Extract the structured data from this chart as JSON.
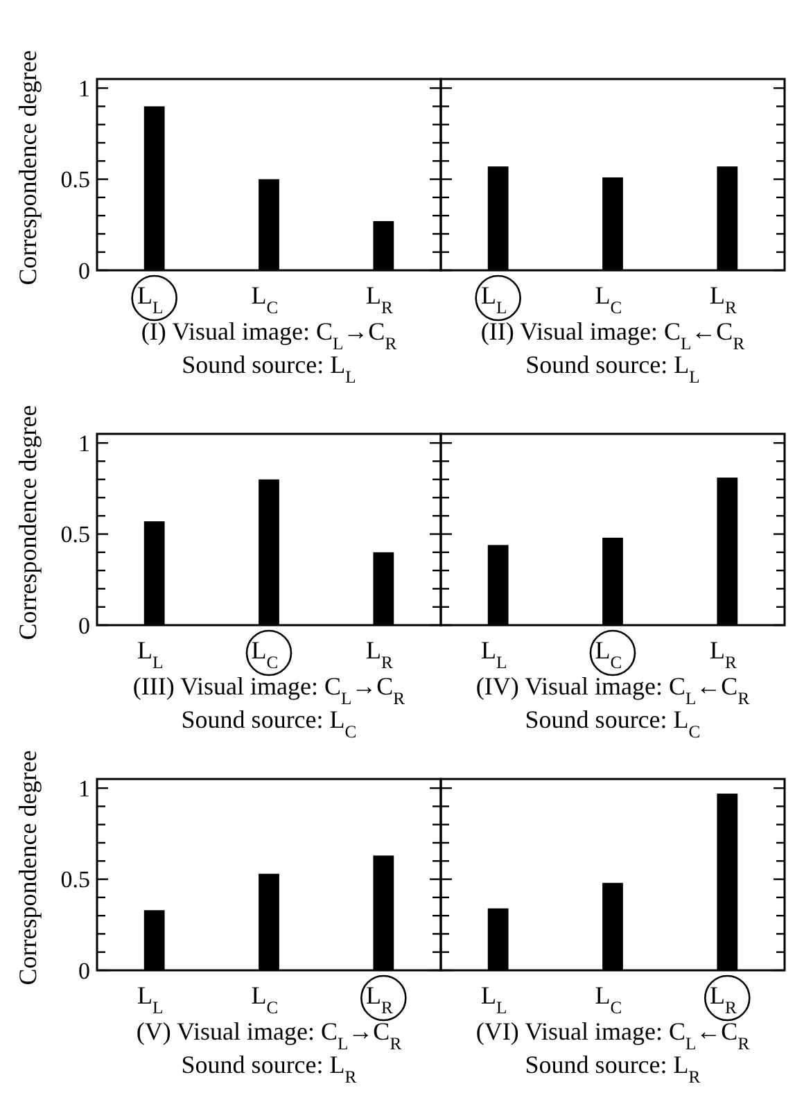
{
  "chart_data": [
    {
      "type": "bar",
      "title": "(I) Visual image: C$_{L}$→C$_{R}$",
      "subtitle": "Sound source: L$_{L}$",
      "ylabel": "Correspondence degree",
      "categories": [
        "L$_{L}$",
        "L$_{C}$",
        "L$_{R}$"
      ],
      "values": [
        0.9,
        0.5,
        0.27
      ],
      "color": "#000000",
      "ylim": [
        0,
        1.05
      ],
      "yticks": [
        0,
        {
          "value": 0.1,
          "label": null
        },
        {
          "value": 0.2,
          "label": null
        },
        {
          "value": 0.3,
          "label": null
        },
        {
          "value": 0.4,
          "label": null
        },
        0.5,
        {
          "value": 0.6,
          "label": null
        },
        {
          "value": 0.7,
          "label": null
        },
        {
          "value": 0.8,
          "label": null
        },
        {
          "value": 0.9,
          "label": null
        },
        1
      ],
      "grid": false
    },
    {
      "type": "bar",
      "title": "(II) Visual image: C$_{L}$←C$_{R}$",
      "subtitle": "Sound source: L$_{L}$",
      "categories": [
        "L$_{L}$",
        "L$_{C}$",
        "L$_{R}$"
      ],
      "values": [
        0.57,
        0.51,
        0.57
      ],
      "color": "#000000",
      "ylim": [
        0,
        1.05
      ],
      "yticks": [
        0,
        {
          "value": 0.1,
          "label": null
        },
        {
          "value": 0.2,
          "label": null
        },
        {
          "value": 0.3,
          "label": null
        },
        {
          "value": 0.4,
          "label": null
        },
        0.5,
        {
          "value": 0.6,
          "label": null
        },
        {
          "value": 0.7,
          "label": null
        },
        {
          "value": 0.8,
          "label": null
        },
        {
          "value": 0.9,
          "label": null
        },
        1
      ],
      "grid": false,
      "tick_labels": "x"
    },
    {
      "type": "bar",
      "title": "(III) Visual image: C$_{L}$→C$_{R}$",
      "subtitle": "Sound source: L$_{C}$",
      "ylabel": "Correspondence degree",
      "categories": [
        "L$_{L}$",
        "L$_{C}$",
        "L$_{R}$"
      ],
      "values": [
        0.57,
        0.8,
        0.4
      ],
      "color": "#000000",
      "ylim": [
        0,
        1.05
      ],
      "yticks": [
        0,
        {
          "value": 0.1,
          "label": null
        },
        {
          "value": 0.2,
          "label": null
        },
        {
          "value": 0.3,
          "label": null
        },
        {
          "value": 0.4,
          "label": null
        },
        0.5,
        {
          "value": 0.6,
          "label": null
        },
        {
          "value": 0.7,
          "label": null
        },
        {
          "value": 0.8,
          "label": null
        },
        {
          "value": 0.9,
          "label": null
        },
        1
      ],
      "grid": false
    },
    {
      "type": "bar",
      "title": "(IV) Visual image: C$_{L}$←C$_{R}$",
      "subtitle": "Sound source: L$_{C}$",
      "categories": [
        "L$_{L}$",
        "L$_{C}$",
        "L$_{R}$"
      ],
      "values": [
        0.44,
        0.48,
        0.81
      ],
      "color": "#000000",
      "ylim": [
        0,
        1.05
      ],
      "yticks": [
        0,
        {
          "value": 0.1,
          "label": null
        },
        {
          "value": 0.2,
          "label": null
        },
        {
          "value": 0.3,
          "label": null
        },
        {
          "value": 0.4,
          "label": null
        },
        0.5,
        {
          "value": 0.6,
          "label": null
        },
        {
          "value": 0.7,
          "label": null
        },
        {
          "value": 0.8,
          "label": null
        },
        {
          "value": 0.9,
          "label": null
        },
        1
      ],
      "grid": false,
      "tick_labels": "x"
    },
    {
      "type": "bar",
      "title": "(V) Visual image: C$_{L}$→C$_{R}$",
      "subtitle": "Sound source: L$_{R}$",
      "ylabel": "Correspondence degree",
      "categories": [
        "L$_{L}$",
        "L$_{C}$",
        "L$_{R}$"
      ],
      "values": [
        0.33,
        0.53,
        0.63
      ],
      "color": "#000000",
      "ylim": [
        0,
        1.05
      ],
      "yticks": [
        0,
        {
          "value": 0.1,
          "label": null
        },
        {
          "value": 0.2,
          "label": null
        },
        {
          "value": 0.3,
          "label": null
        },
        {
          "value": 0.4,
          "label": null
        },
        0.5,
        {
          "value": 0.6,
          "label": null
        },
        {
          "value": 0.7,
          "label": null
        },
        {
          "value": 0.8,
          "label": null
        },
        {
          "value": 0.9,
          "label": null
        },
        1
      ],
      "grid": false
    },
    {
      "type": "bar",
      "title": "(VI) Visual image: C$_{L}$←C$_{R}$",
      "subtitle": "Sound source: L$_{R}$",
      "categories": [
        "L$_{L}$",
        "L$_{C}$",
        "L$_{R}$"
      ],
      "values": [
        0.34,
        0.48,
        0.97
      ],
      "color": "#000000",
      "ylim": [
        0,
        1.05
      ],
      "yticks": [
        0,
        {
          "value": 0.1,
          "label": null
        },
        {
          "value": 0.2,
          "label": null
        },
        {
          "value": 0.3,
          "label": null
        },
        {
          "value": 0.4,
          "label": null
        },
        0.5,
        {
          "value": 0.6,
          "label": null
        },
        {
          "value": 0.7,
          "label": null
        },
        {
          "value": 0.8,
          "label": null
        },
        {
          "value": 0.9,
          "label": null
        },
        1
      ],
      "grid": false,
      "tick_labels": "x"
    }
  ]
}
